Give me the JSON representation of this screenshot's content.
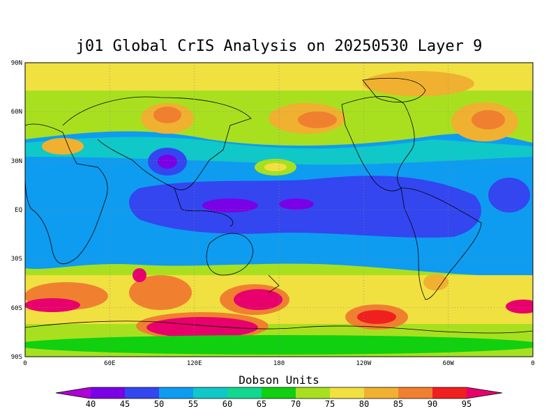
{
  "title": "j01 Global CrIS Analysis on 20250530 Layer 9",
  "y_ticks": [
    "90N",
    "60N",
    "30N",
    "EQ",
    "30S",
    "60S",
    "90S"
  ],
  "x_ticks": [
    "0",
    "60E",
    "120E",
    "180",
    "120W",
    "60W",
    "0"
  ],
  "colorbar": {
    "title": "Dobson Units",
    "levels": [
      "40",
      "45",
      "50",
      "55",
      "60",
      "65",
      "70",
      "75",
      "80",
      "85",
      "90",
      "95"
    ],
    "colors": [
      "#b000d8",
      "#7a00e6",
      "#3346f0",
      "#0e9cf0",
      "#10c8c8",
      "#10d890",
      "#10d010",
      "#a8e020",
      "#f0e040",
      "#f0b030",
      "#f08030",
      "#f02020",
      "#e8006c"
    ]
  },
  "regions": {
    "background": "#a8e020",
    "tropics": "#3346f0",
    "tropics_core": "#7a00e6",
    "subtropics": "#0e9cf0",
    "midlat_band": "#10c8c8",
    "warm": "#f0e040",
    "hot": "#f0b030",
    "hotter": "#f08030",
    "peak": "#e8006c"
  }
}
